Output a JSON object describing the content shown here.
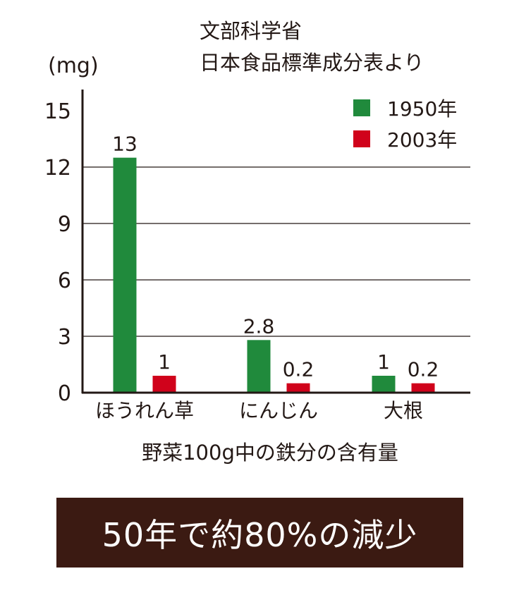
{
  "source": {
    "line1": "文部科学省",
    "line2": "日本食品標準成分表より"
  },
  "chart_data": {
    "type": "bar",
    "categories": [
      "ほうれん草",
      "にんじん",
      "大根"
    ],
    "series": [
      {
        "name": "1950年",
        "color": "#208a3c",
        "values": [
          13,
          2.8,
          1
        ],
        "labels": [
          "13",
          "2.8",
          "1"
        ]
      },
      {
        "name": "2003年",
        "color": "#d0021b",
        "values": [
          1,
          0.2,
          0.2
        ],
        "labels": [
          "1",
          "0.2",
          "0.2"
        ]
      }
    ],
    "bar_heights_shown": {
      "1950年": [
        12.5,
        2.8,
        0.9
      ],
      "2003年": [
        0.9,
        0.5,
        0.5
      ]
    },
    "title": "",
    "ylabel": "(mg)",
    "xlabel": "野菜100g中の鉄分の含有量",
    "ylim": [
      0,
      15
    ],
    "yticks": [
      0,
      3,
      6,
      9,
      12,
      15
    ],
    "grid": true,
    "legend_position": "top-right"
  },
  "banner": {
    "text": "50年で約80%の減少",
    "background": "#3b1a12"
  }
}
